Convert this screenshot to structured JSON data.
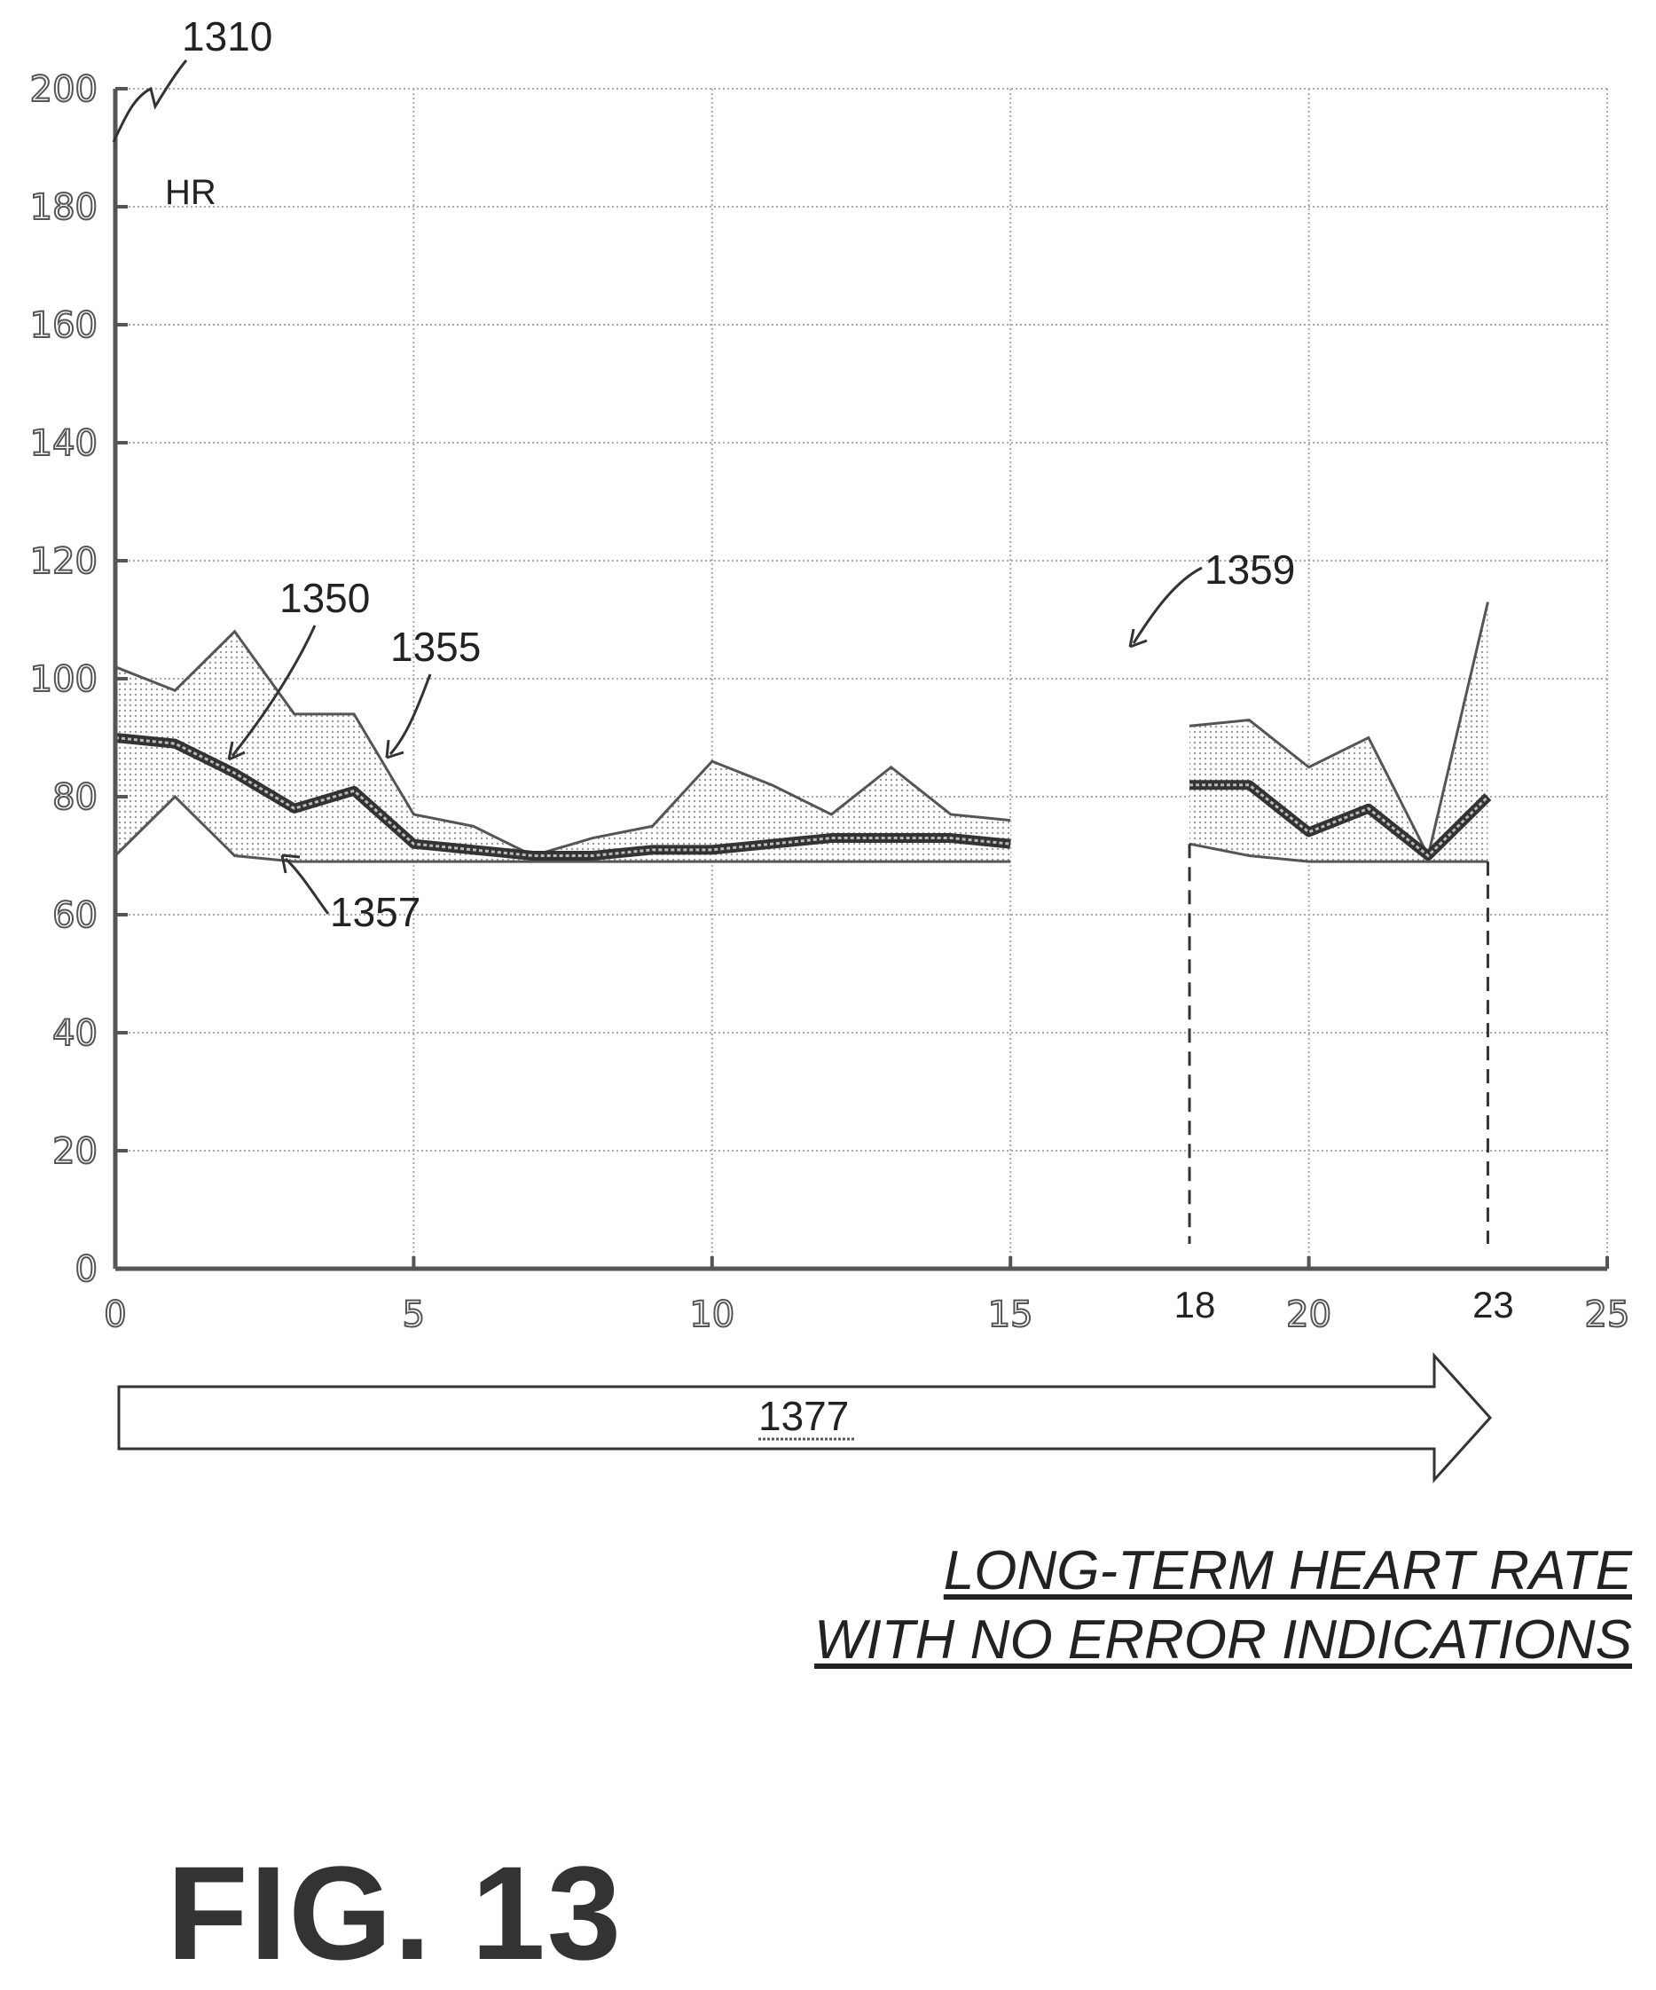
{
  "chart_data": {
    "type": "line",
    "ylabel": "HR",
    "xlim": [
      0,
      25
    ],
    "ylim": [
      0,
      200
    ],
    "x_ticks": [
      0,
      5,
      10,
      15,
      20,
      25
    ],
    "y_ticks": [
      0,
      20,
      40,
      60,
      80,
      100,
      120,
      140,
      160,
      180,
      200
    ],
    "extra_x_labels": [
      "18",
      "23"
    ],
    "grid": true,
    "segments": [
      {
        "x": [
          0,
          1,
          2,
          3,
          4,
          5,
          6,
          7,
          8,
          9,
          10,
          11,
          12,
          13,
          14,
          15
        ],
        "upper": [
          102,
          98,
          108,
          94,
          94,
          77,
          75,
          70,
          73,
          75,
          86,
          82,
          77,
          85,
          77,
          76
        ],
        "median": [
          90,
          89,
          84,
          78,
          81,
          72,
          71,
          70,
          70,
          71,
          71,
          72,
          73,
          73,
          73,
          72
        ],
        "lower": [
          70,
          80,
          70,
          69,
          69,
          69,
          69,
          69,
          69,
          69,
          69,
          69,
          69,
          69,
          69,
          69
        ]
      },
      {
        "x": [
          18,
          19,
          20,
          21,
          22,
          23
        ],
        "upper": [
          92,
          93,
          85,
          90,
          70,
          113
        ],
        "median": [
          82,
          82,
          74,
          78,
          70,
          80
        ],
        "lower": [
          72,
          70,
          69,
          69,
          69,
          69
        ]
      }
    ],
    "dashed_markers_x": [
      18,
      23
    ],
    "annotations": [
      {
        "text": "1310",
        "target": "y-axis"
      },
      {
        "text": "1350",
        "target": "median line"
      },
      {
        "text": "1355",
        "target": "upper band"
      },
      {
        "text": "1357",
        "target": "lower band"
      },
      {
        "text": "1359",
        "target": "data gap"
      },
      {
        "text": "1377",
        "target": "time arrow"
      }
    ]
  },
  "caption_line1": "LONG-TERM HEART RATE",
  "caption_line2": "WITH NO ERROR INDICATIONS",
  "figure_label": "FIG. 13"
}
